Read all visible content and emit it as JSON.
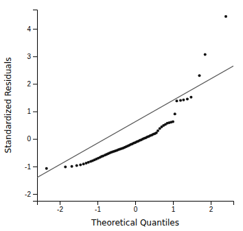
{
  "chart_data": {
    "type": "scatter",
    "xlabel": "Theoretical Quantiles",
    "ylabel": "Standardized Residuals",
    "xlim": [
      -2.6,
      2.6
    ],
    "ylim": [
      -2.25,
      4.7
    ],
    "xticks": [
      -2,
      -1,
      0,
      1,
      2
    ],
    "yticks": [
      -2,
      -1,
      0,
      1,
      2,
      3,
      4
    ],
    "series": [
      {
        "type": "scatter",
        "color": "#111111",
        "x": [
          -2.35,
          -1.85,
          -1.68,
          -1.55,
          -1.45,
          -1.37,
          -1.3,
          -1.24,
          -1.18,
          -1.13,
          -1.08,
          -1.03,
          -0.98,
          -0.93,
          -0.89,
          -0.85,
          -0.8,
          -0.76,
          -0.72,
          -0.68,
          -0.64,
          -0.6,
          -0.56,
          -0.52,
          -0.48,
          -0.44,
          -0.4,
          -0.36,
          -0.32,
          -0.28,
          -0.24,
          -0.2,
          -0.16,
          -0.12,
          -0.08,
          -0.04,
          0.0,
          0.04,
          0.08,
          0.12,
          0.16,
          0.2,
          0.24,
          0.28,
          0.32,
          0.36,
          0.4,
          0.44,
          0.48,
          0.52,
          0.56,
          0.6,
          0.65,
          0.7,
          0.75,
          0.8,
          0.85,
          0.9,
          0.95,
          1.0,
          1.05,
          1.1,
          1.2,
          1.28,
          1.38,
          1.48,
          1.7,
          1.85,
          2.4
        ],
        "values": [
          -1.07,
          -1.02,
          -1.0,
          -0.97,
          -0.94,
          -0.91,
          -0.88,
          -0.85,
          -0.82,
          -0.79,
          -0.76,
          -0.73,
          -0.7,
          -0.67,
          -0.64,
          -0.62,
          -0.59,
          -0.56,
          -0.54,
          -0.51,
          -0.49,
          -0.47,
          -0.45,
          -0.43,
          -0.41,
          -0.39,
          -0.37,
          -0.35,
          -0.33,
          -0.31,
          -0.28,
          -0.26,
          -0.23,
          -0.2,
          -0.18,
          -0.15,
          -0.13,
          -0.1,
          -0.08,
          -0.05,
          -0.03,
          0.0,
          0.02,
          0.04,
          0.07,
          0.09,
          0.12,
          0.14,
          0.17,
          0.19,
          0.22,
          0.3,
          0.38,
          0.44,
          0.49,
          0.53,
          0.57,
          0.59,
          0.61,
          0.63,
          0.91,
          1.38,
          1.4,
          1.42,
          1.45,
          1.52,
          2.3,
          3.07,
          4.45
        ]
      },
      {
        "type": "line",
        "color": "#555555",
        "x": [
          -2.6,
          2.6
        ],
        "values": [
          -1.4,
          2.65
        ]
      }
    ]
  }
}
